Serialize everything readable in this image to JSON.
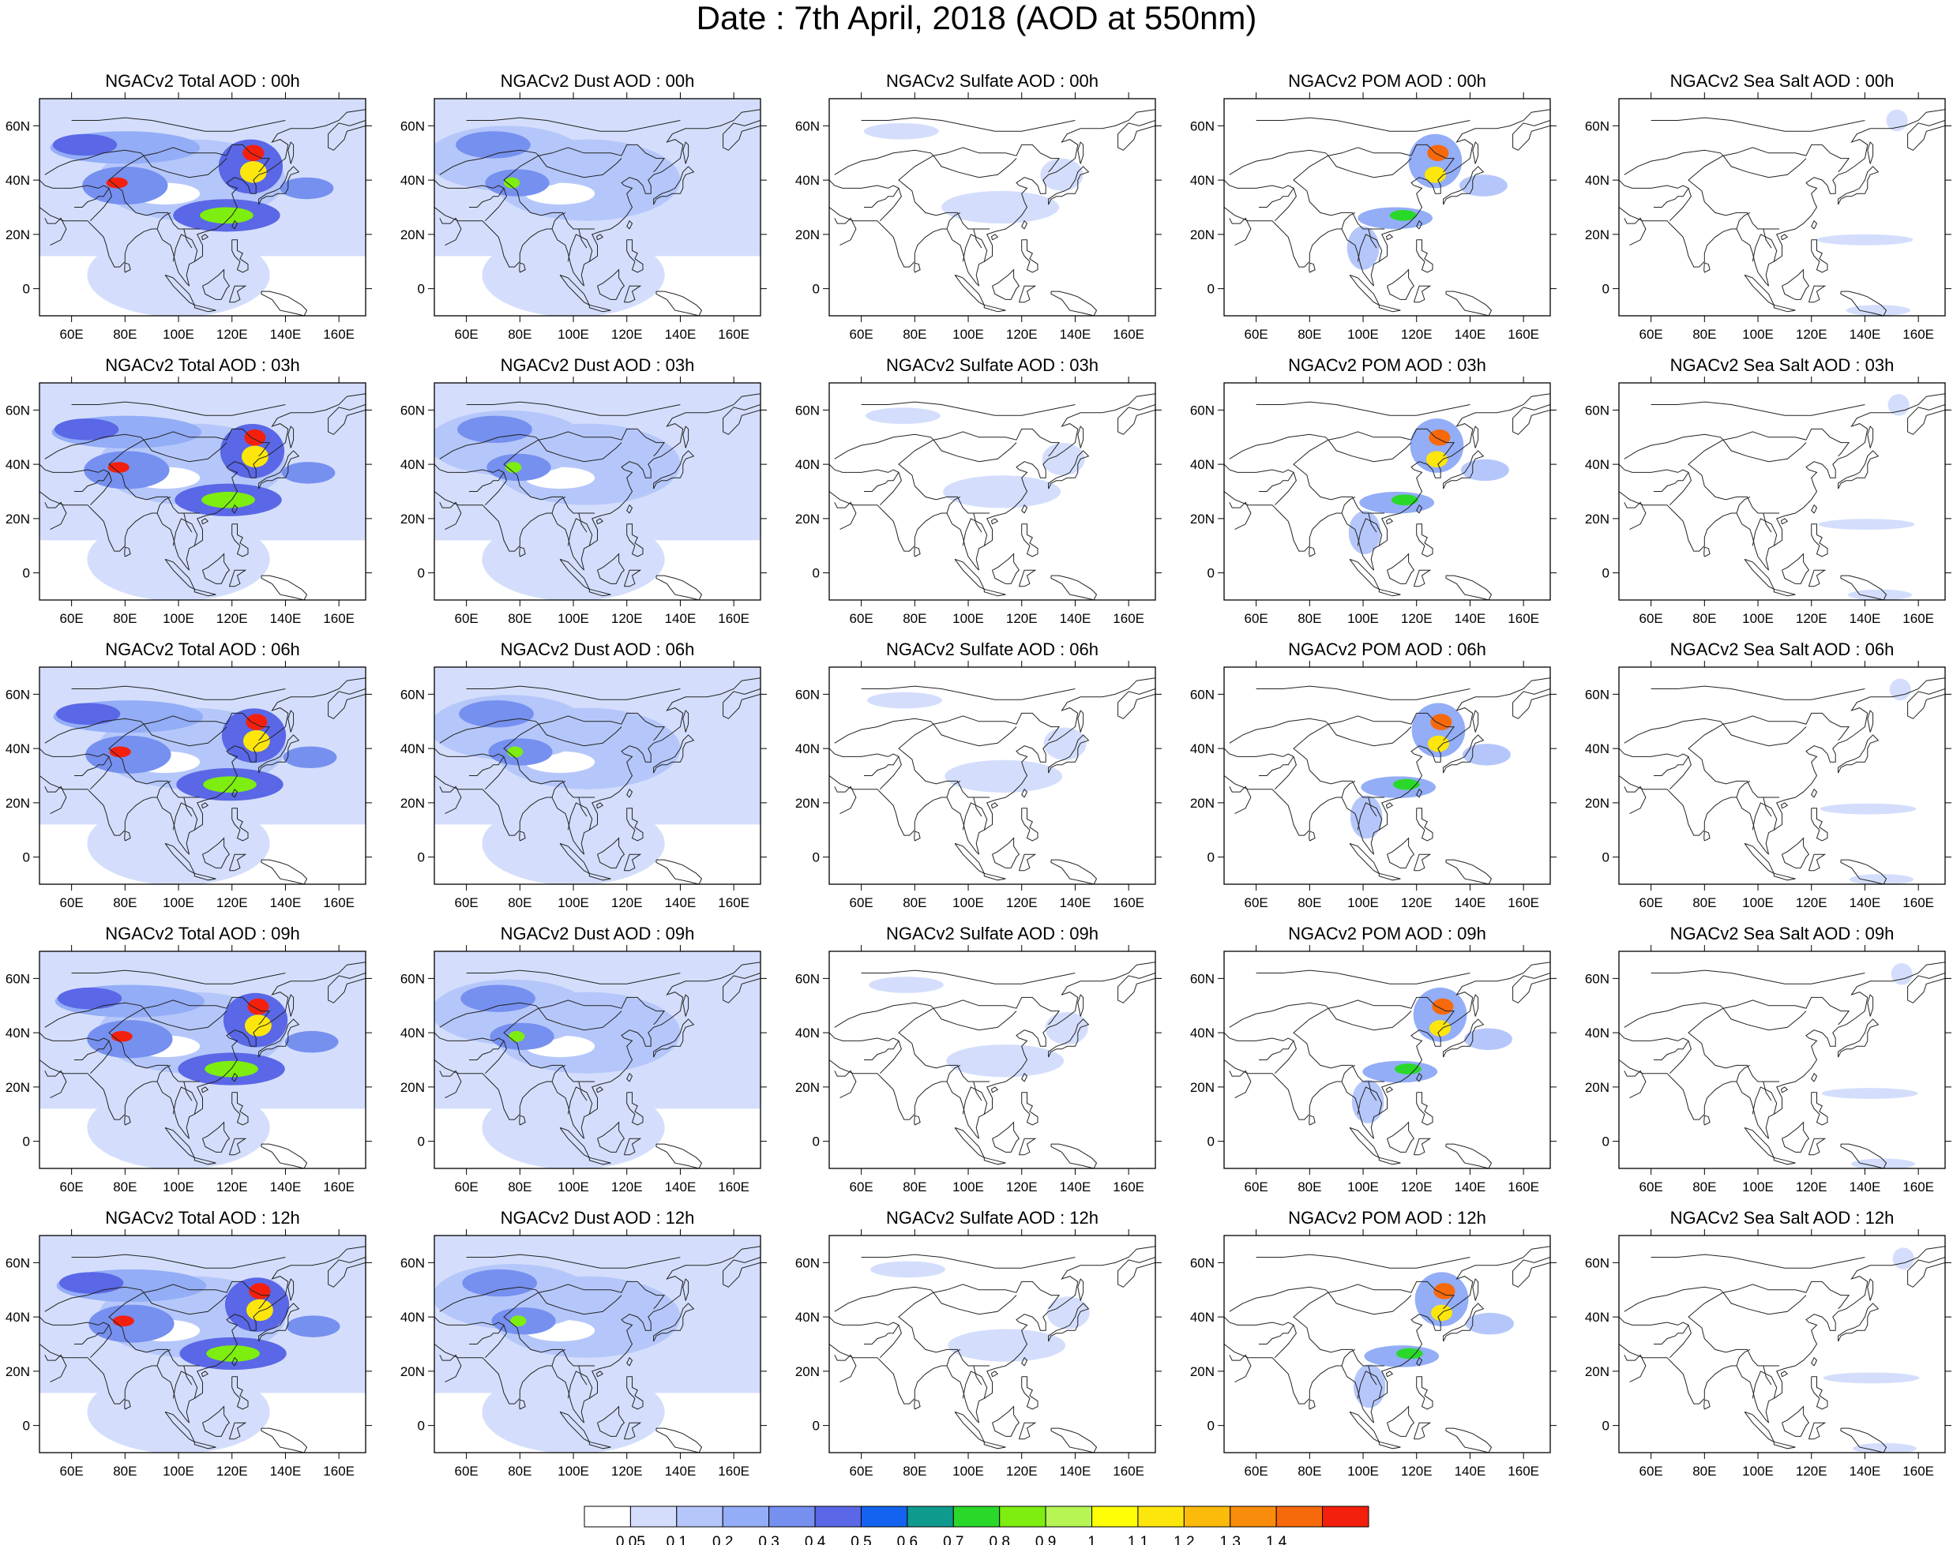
{
  "title": "Date : 7th April, 2018 (AOD at 550nm)",
  "columns": [
    "Total",
    "Dust",
    "Sulfate",
    "POM",
    "Sea Salt"
  ],
  "panels": [
    [
      "NGACv2 Total AOD : 00h",
      "NGACv2 Dust AOD : 00h",
      "NGACv2 Sulfate AOD : 00h",
      "NGACv2 POM AOD : 00h",
      "NGACv2 Sea Salt AOD : 00h"
    ],
    [
      "NGACv2 Total AOD : 03h",
      "NGACv2 Dust AOD : 03h",
      "NGACv2 Sulfate AOD : 03h",
      "NGACv2 POM AOD : 03h",
      "NGACv2 Sea Salt AOD : 03h"
    ],
    [
      "NGACv2 Total AOD : 06h",
      "NGACv2 Dust AOD : 06h",
      "NGACv2 Sulfate AOD : 06h",
      "NGACv2 POM AOD : 06h",
      "NGACv2 Sea Salt AOD : 06h"
    ],
    [
      "NGACv2 Total AOD : 09h",
      "NGACv2 Dust AOD : 09h",
      "NGACv2 Sulfate AOD : 09h",
      "NGACv2 POM AOD : 09h",
      "NGACv2 Sea Salt  AOD : 09h"
    ],
    [
      "NGACv2 Total AOD  : 12h",
      "NGACv2 Dust AOD : 12h",
      "NGACv2 Sulfate AOD : 12h",
      "NGACv2 POM  AOD : 12h",
      "NGACv2 Sea Salt  AOD : 12h"
    ]
  ],
  "map": {
    "lon_range": [
      48,
      170
    ],
    "lat_range": [
      -10,
      70
    ],
    "x_ticks": [
      "60E",
      "80E",
      "100E",
      "120E",
      "140E",
      "160E"
    ],
    "x_tick_values": [
      60,
      80,
      100,
      120,
      140,
      160
    ],
    "y_ticks": [
      "0",
      "20N",
      "40N",
      "60N"
    ],
    "y_tick_values": [
      0,
      20,
      40,
      60
    ]
  },
  "colorbar": {
    "colors": [
      "#ffffff",
      "#d4defc",
      "#b5c7fa",
      "#93adf7",
      "#7690f0",
      "#5a67e6",
      "#1463f0",
      "#0f9a8e",
      "#2ad82a",
      "#7dee0f",
      "#b6f554",
      "#fefe07",
      "#fde60c",
      "#fcba0a",
      "#fa8c0c",
      "#f8690b",
      "#f4200d"
    ],
    "labels": [
      "0.05",
      "0.1",
      "0.2",
      "0.3",
      "0.4",
      "0.5",
      "0.6",
      "0.7",
      "0.8",
      "0.9",
      "1",
      "1.1",
      "1.2",
      "1.3",
      "1.4"
    ]
  },
  "species_features": {
    "Total": [
      {
        "lon": 80,
        "lat": 52,
        "rx": 28,
        "ry": 6,
        "level": 3
      },
      {
        "lon": 65,
        "lat": 53,
        "rx": 12,
        "ry": 4,
        "level": 5
      },
      {
        "lon": 80,
        "lat": 38,
        "rx": 16,
        "ry": 7,
        "level": 4
      },
      {
        "lon": 77,
        "lat": 39,
        "rx": 4,
        "ry": 2,
        "level": 16
      },
      {
        "lon": 118,
        "lat": 27,
        "rx": 20,
        "ry": 6,
        "level": 5
      },
      {
        "lon": 118,
        "lat": 27,
        "rx": 10,
        "ry": 3,
        "level": 9
      },
      {
        "lon": 127,
        "lat": 45,
        "rx": 12,
        "ry": 10,
        "level": 5
      },
      {
        "lon": 128,
        "lat": 50,
        "rx": 4,
        "ry": 3,
        "level": 16
      },
      {
        "lon": 128,
        "lat": 43,
        "rx": 5,
        "ry": 4,
        "level": 12
      },
      {
        "lon": 148,
        "lat": 37,
        "rx": 10,
        "ry": 4,
        "level": 4
      }
    ],
    "Dust": [
      {
        "lon": 75,
        "lat": 48,
        "rx": 30,
        "ry": 12,
        "level": 2
      },
      {
        "lon": 70,
        "lat": 53,
        "rx": 14,
        "ry": 5,
        "level": 4
      },
      {
        "lon": 79,
        "lat": 39,
        "rx": 12,
        "ry": 5,
        "level": 4
      },
      {
        "lon": 77,
        "lat": 39,
        "rx": 3,
        "ry": 2,
        "level": 9
      }
    ],
    "Sulfate": [
      {
        "lon": 112,
        "lat": 30,
        "rx": 22,
        "ry": 6,
        "level": 1
      },
      {
        "lon": 135,
        "lat": 42,
        "rx": 8,
        "ry": 6,
        "level": 1
      },
      {
        "lon": 75,
        "lat": 58,
        "rx": 14,
        "ry": 3,
        "level": 1
      }
    ],
    "POM": [
      {
        "lon": 127,
        "lat": 47,
        "rx": 10,
        "ry": 10,
        "level": 3
      },
      {
        "lon": 128,
        "lat": 50,
        "rx": 4,
        "ry": 3,
        "level": 15
      },
      {
        "lon": 127,
        "lat": 42,
        "rx": 4,
        "ry": 3,
        "level": 12
      },
      {
        "lon": 145,
        "lat": 38,
        "rx": 9,
        "ry": 4,
        "level": 2
      },
      {
        "lon": 112,
        "lat": 26,
        "rx": 14,
        "ry": 4,
        "level": 3
      },
      {
        "lon": 115,
        "lat": 27,
        "rx": 5,
        "ry": 2,
        "level": 8
      },
      {
        "lon": 100,
        "lat": 15,
        "rx": 6,
        "ry": 8,
        "level": 2
      }
    ],
    "Sea Salt": [
      {
        "lon": 140,
        "lat": 18,
        "rx": 18,
        "ry": 2,
        "level": 1
      },
      {
        "lon": 145,
        "lat": -8,
        "rx": 12,
        "ry": 2,
        "level": 1
      },
      {
        "lon": 152,
        "lat": 62,
        "rx": 4,
        "ry": 4,
        "level": 1
      }
    ]
  }
}
